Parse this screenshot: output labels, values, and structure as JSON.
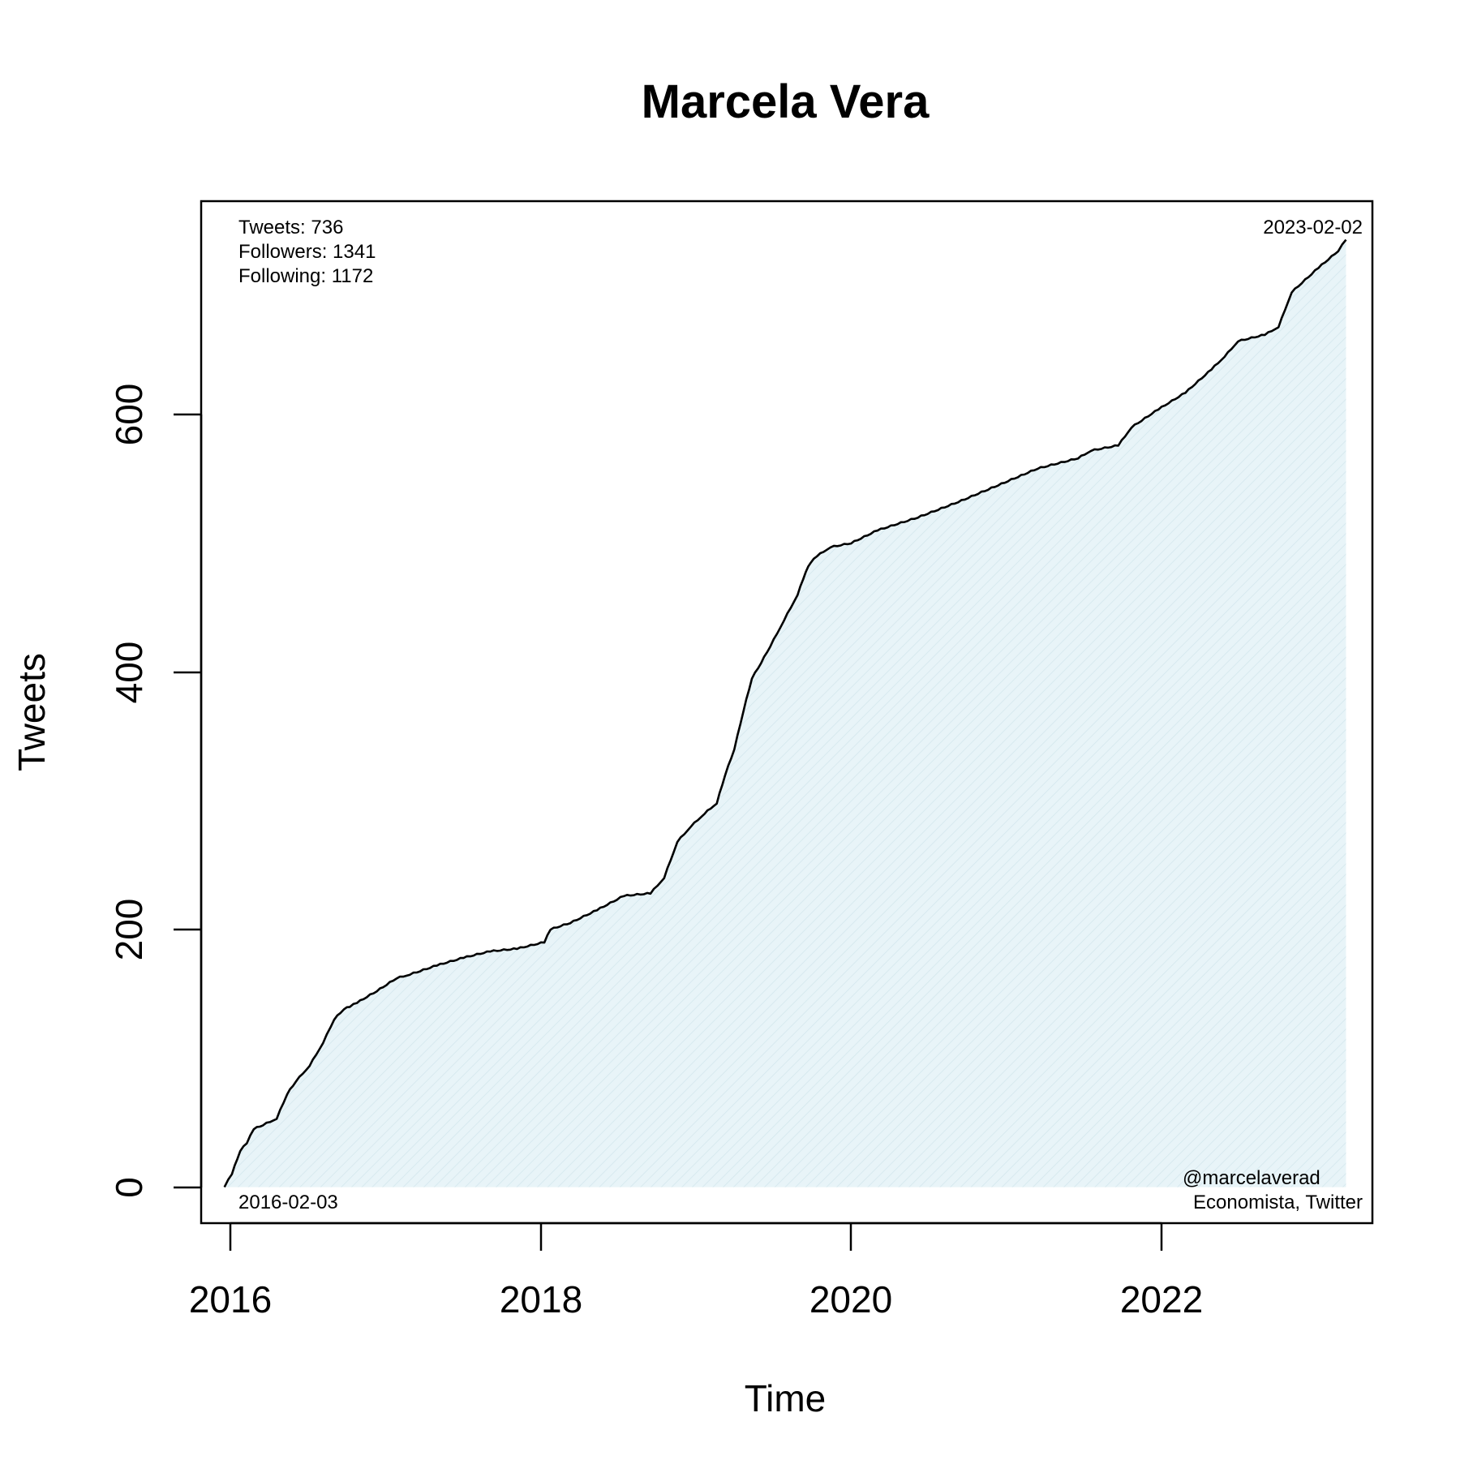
{
  "chart_data": {
    "type": "area",
    "title": "Marcela Vera",
    "xlabel": "Time",
    "ylabel": "Tweets",
    "xlim": [
      "2015-12-12",
      "2023-04-03"
    ],
    "ylim": [
      -28,
      766
    ],
    "x_ticks": [
      "2016",
      "2018",
      "2020",
      "2022"
    ],
    "y_ticks": [
      "0",
      "200",
      "400",
      "600"
    ],
    "grid": false,
    "colors": {
      "line": "#000000",
      "fill": "#e8f4f8",
      "hatch": "#d2e6ec"
    },
    "annotations": {
      "tweets": "Tweets: 736",
      "followers": "Followers: 1341",
      "following": "Following: 1172",
      "start_date": "2016-02-03",
      "end_date": "2023-02-02",
      "handle": "@marcelaverad",
      "description": "Economista, Twitter"
    },
    "series": [
      {
        "x": [
          "2016-02-03",
          "2016-02-20",
          "2016-03-10",
          "2016-03-25",
          "2016-04-10",
          "2016-05-01",
          "2016-06-01",
          "2016-06-25",
          "2016-07-15",
          "2016-08-15",
          "2016-09-15",
          "2016-10-10",
          "2016-11-01",
          "2016-11-15",
          "2016-12-01",
          "2017-01-15",
          "2017-03-01",
          "2017-04-01",
          "2017-06-01",
          "2017-08-01",
          "2017-10-01",
          "2017-12-01",
          "2018-02-01",
          "2018-02-15",
          "2018-04-01",
          "2018-06-01",
          "2018-08-01",
          "2018-10-01",
          "2018-11-01",
          "2018-12-01",
          "2019-01-01",
          "2019-02-01",
          "2019-03-01",
          "2019-03-20",
          "2019-04-10",
          "2019-05-01",
          "2019-05-20",
          "2019-06-10",
          "2019-07-01",
          "2019-08-01",
          "2019-09-01",
          "2019-09-20",
          "2019-10-01",
          "2019-10-15",
          "2019-11-15",
          "2020-01-01",
          "2020-03-01",
          "2020-06-01",
          "2020-09-01",
          "2020-12-01",
          "2021-03-01",
          "2021-06-01",
          "2021-07-01",
          "2021-09-01",
          "2021-10-01",
          "2021-12-01",
          "2022-02-01",
          "2022-04-01",
          "2022-05-01",
          "2022-06-01",
          "2022-08-01",
          "2022-09-01",
          "2022-10-01",
          "2022-12-01",
          "2023-01-15",
          "2023-02-02"
        ],
        "y": [
          0,
          10,
          28,
          34,
          45,
          48,
          53,
          72,
          82,
          94,
          112,
          130,
          138,
          140,
          143,
          152,
          162,
          165,
          172,
          178,
          183,
          185,
          190,
          200,
          205,
          215,
          226,
          228,
          240,
          268,
          280,
          290,
          298,
          320,
          340,
          370,
          395,
          407,
          420,
          440,
          460,
          478,
          485,
          490,
          497,
          500,
          510,
          520,
          532,
          545,
          558,
          566,
          572,
          576,
          590,
          604,
          617,
          635,
          645,
          657,
          662,
          668,
          695,
          714,
          727,
          736
        ]
      }
    ]
  }
}
